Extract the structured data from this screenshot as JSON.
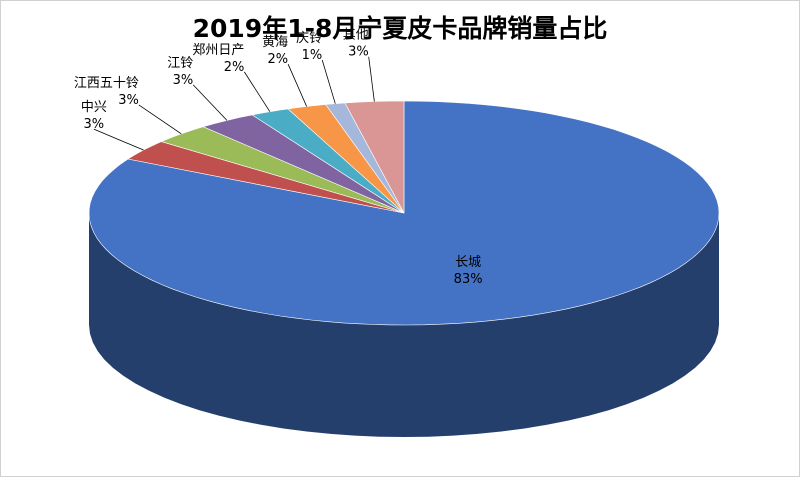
{
  "chart_data": {
    "type": "pie",
    "title": "2019年1-8月宁夏皮卡品牌销量占比",
    "slices": [
      {
        "name": "长城",
        "value": 83,
        "label": "83%",
        "color": "#4472C4"
      },
      {
        "name": "中兴",
        "value": 3,
        "label": "3%",
        "color": "#C0504D"
      },
      {
        "name": "江西五十铃",
        "value": 3,
        "label": "3%",
        "color": "#9BBB59"
      },
      {
        "name": "江铃",
        "value": 3,
        "label": "3%",
        "color": "#8064A2"
      },
      {
        "name": "郑州日产",
        "value": 2,
        "label": "2%",
        "color": "#4BACC6"
      },
      {
        "name": "黄海",
        "value": 2,
        "label": "2%",
        "color": "#F79646"
      },
      {
        "name": "庆铃",
        "value": 1,
        "label": "1%",
        "color": "#A5B7DB"
      },
      {
        "name": "其他",
        "value": 3,
        "label": "3%",
        "color": "#D99694"
      }
    ]
  }
}
